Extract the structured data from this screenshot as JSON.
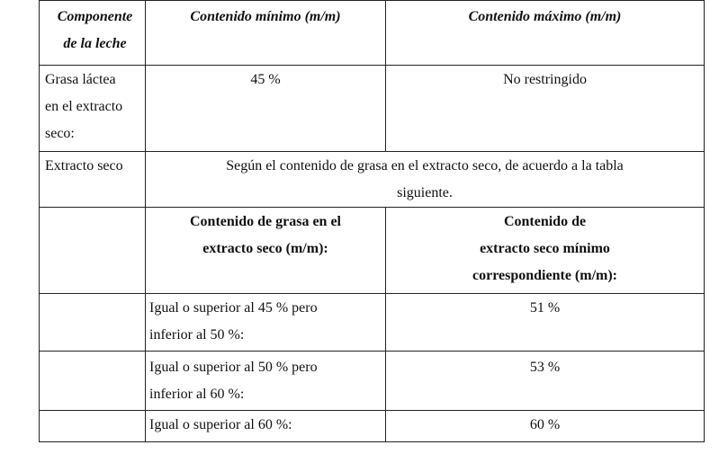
{
  "header": {
    "col1_line1": "Componente",
    "col1_line2": "de la leche",
    "col2": "Contenido mínimo (m/m)",
    "col3": "Contenido máximo (m/m)"
  },
  "grasa": {
    "label_line1": "Grasa láctea",
    "label_line2": "en el extracto",
    "label_line3": "seco:",
    "min": "45 %",
    "max": "No restringido"
  },
  "extracto": {
    "label": "Extracto seco",
    "note_line1": "Según el contenido de grasa en el extracto seco, de acuerdo a la tabla",
    "note_line2": "siguiente."
  },
  "subtable": {
    "head_col2_line1": "Contenido de grasa en el",
    "head_col2_line2": "extracto seco (m/m):",
    "head_col3_line1": "Contenido de",
    "head_col3_line2": "extracto seco mínimo",
    "head_col3_line3": "correspondiente (m/m):",
    "rows": [
      {
        "range_line1": "Igual o superior al 45 % pero",
        "range_line2": "inferior al 50 %:",
        "value": "51 %"
      },
      {
        "range_line1": "Igual o superior al 50 % pero",
        "range_line2": "inferior al 60 %:",
        "value": "53 %"
      },
      {
        "range_line1": "Igual o superior al 60 %:",
        "range_line2": "",
        "value": "60 %"
      }
    ]
  }
}
